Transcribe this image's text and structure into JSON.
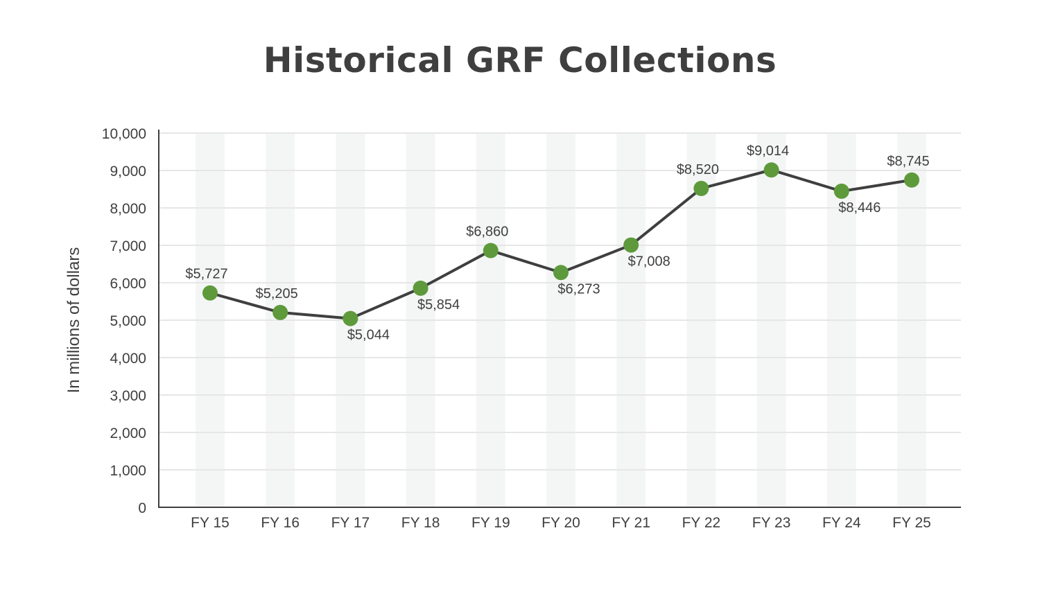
{
  "chart_data": {
    "type": "line",
    "title": "Historical GRF Collections",
    "xlabel": "",
    "ylabel": "In millions of dollars",
    "categories": [
      "FY 15",
      "FY 16",
      "FY 17",
      "FY 18",
      "FY 19",
      "FY 20",
      "FY 21",
      "FY 22",
      "FY 23",
      "FY 24",
      "FY 25"
    ],
    "values": [
      5727,
      5205,
      5044,
      5854,
      6860,
      6273,
      7008,
      8520,
      9014,
      8446,
      8745
    ],
    "data_labels": [
      "$5,727",
      "$5,205",
      "$5,044",
      "$5,854",
      "$6,860",
      "$6,273",
      "$7,008",
      "$8,520",
      "$9,014",
      "$8,446",
      "$8,745"
    ],
    "ylim": [
      0,
      10000
    ],
    "yticks": [
      0,
      1000,
      2000,
      3000,
      4000,
      5000,
      6000,
      7000,
      8000,
      9000,
      10000
    ],
    "ytick_labels": [
      "0",
      "1,000",
      "2,000",
      "3,000",
      "4,000",
      "5,000",
      "6,000",
      "7,000",
      "8,000",
      "9,000",
      "10,000"
    ],
    "grid": true,
    "legend": "none",
    "colors": {
      "line": "#3f3f3f",
      "marker": "#5e9a3c",
      "band": "#f4f6f5",
      "grid": "#e6e6e6",
      "text": "#3f3f3f"
    }
  }
}
